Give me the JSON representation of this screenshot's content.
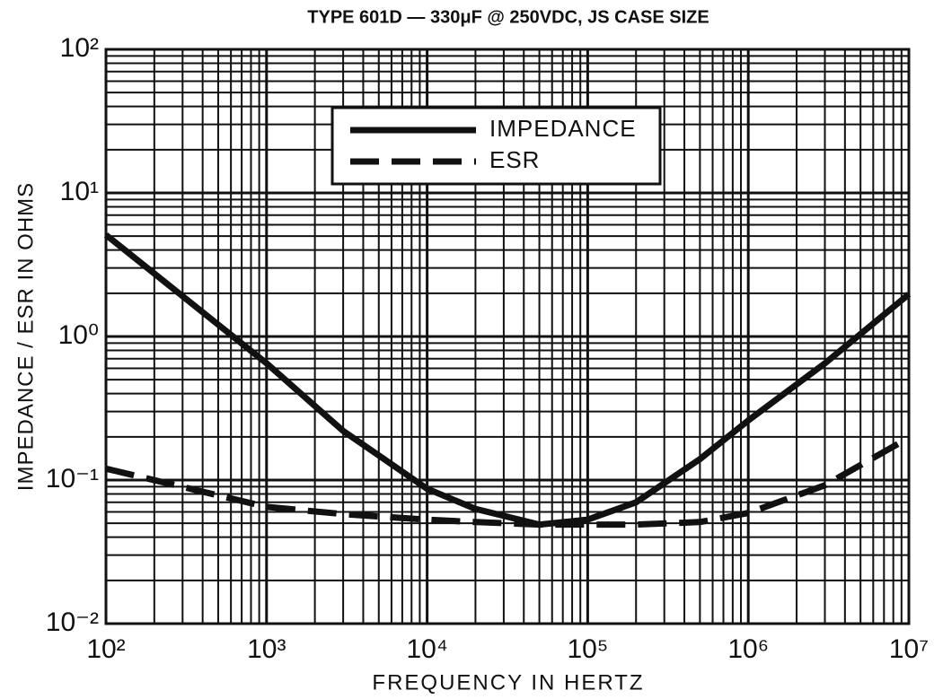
{
  "chart_data": {
    "type": "line",
    "title": "TYPE 601D — 330μF @ 250VDC, JS CASE SIZE",
    "x_label": "FREQUENCY IN HERTZ",
    "y_label": "IMPEDANCE / ESR IN OHMS",
    "x": [
      100,
      1000,
      3000,
      10000,
      20000,
      50000,
      100000,
      200000,
      500000,
      1000000,
      3000000,
      10000000
    ],
    "series": [
      {
        "name": "IMPEDANCE",
        "color": "#111111",
        "dash": "solid",
        "values": [
          5.1,
          0.65,
          0.22,
          0.087,
          0.063,
          0.049,
          0.053,
          0.07,
          0.14,
          0.26,
          0.65,
          1.97
        ]
      },
      {
        "name": "ESR",
        "color": "#111111",
        "dash": "dashed",
        "values": [
          0.12,
          0.065,
          0.058,
          0.053,
          0.051,
          0.049,
          0.049,
          0.049,
          0.051,
          0.059,
          0.092,
          0.197
        ]
      }
    ],
    "xlim": [
      100,
      10000000
    ],
    "ylim": [
      0.01,
      100
    ],
    "x_log": true,
    "y_log": true,
    "grid": true,
    "legend": "top-center",
    "xticks": [
      {
        "value": 100,
        "label": "10²"
      },
      {
        "value": 1000,
        "label": "10³"
      },
      {
        "value": 10000,
        "label": "10⁴"
      },
      {
        "value": 100000,
        "label": "10⁵"
      },
      {
        "value": 1000000,
        "label": "10⁶"
      },
      {
        "value": 10000000,
        "label": "10⁷"
      }
    ],
    "yticks": [
      {
        "value": 0.01,
        "label": "10⁻²"
      },
      {
        "value": 0.1,
        "label": "10⁻¹"
      },
      {
        "value": 1,
        "label": "10⁰"
      },
      {
        "value": 10,
        "label": "10¹"
      },
      {
        "value": 100,
        "label": "10²"
      }
    ]
  }
}
